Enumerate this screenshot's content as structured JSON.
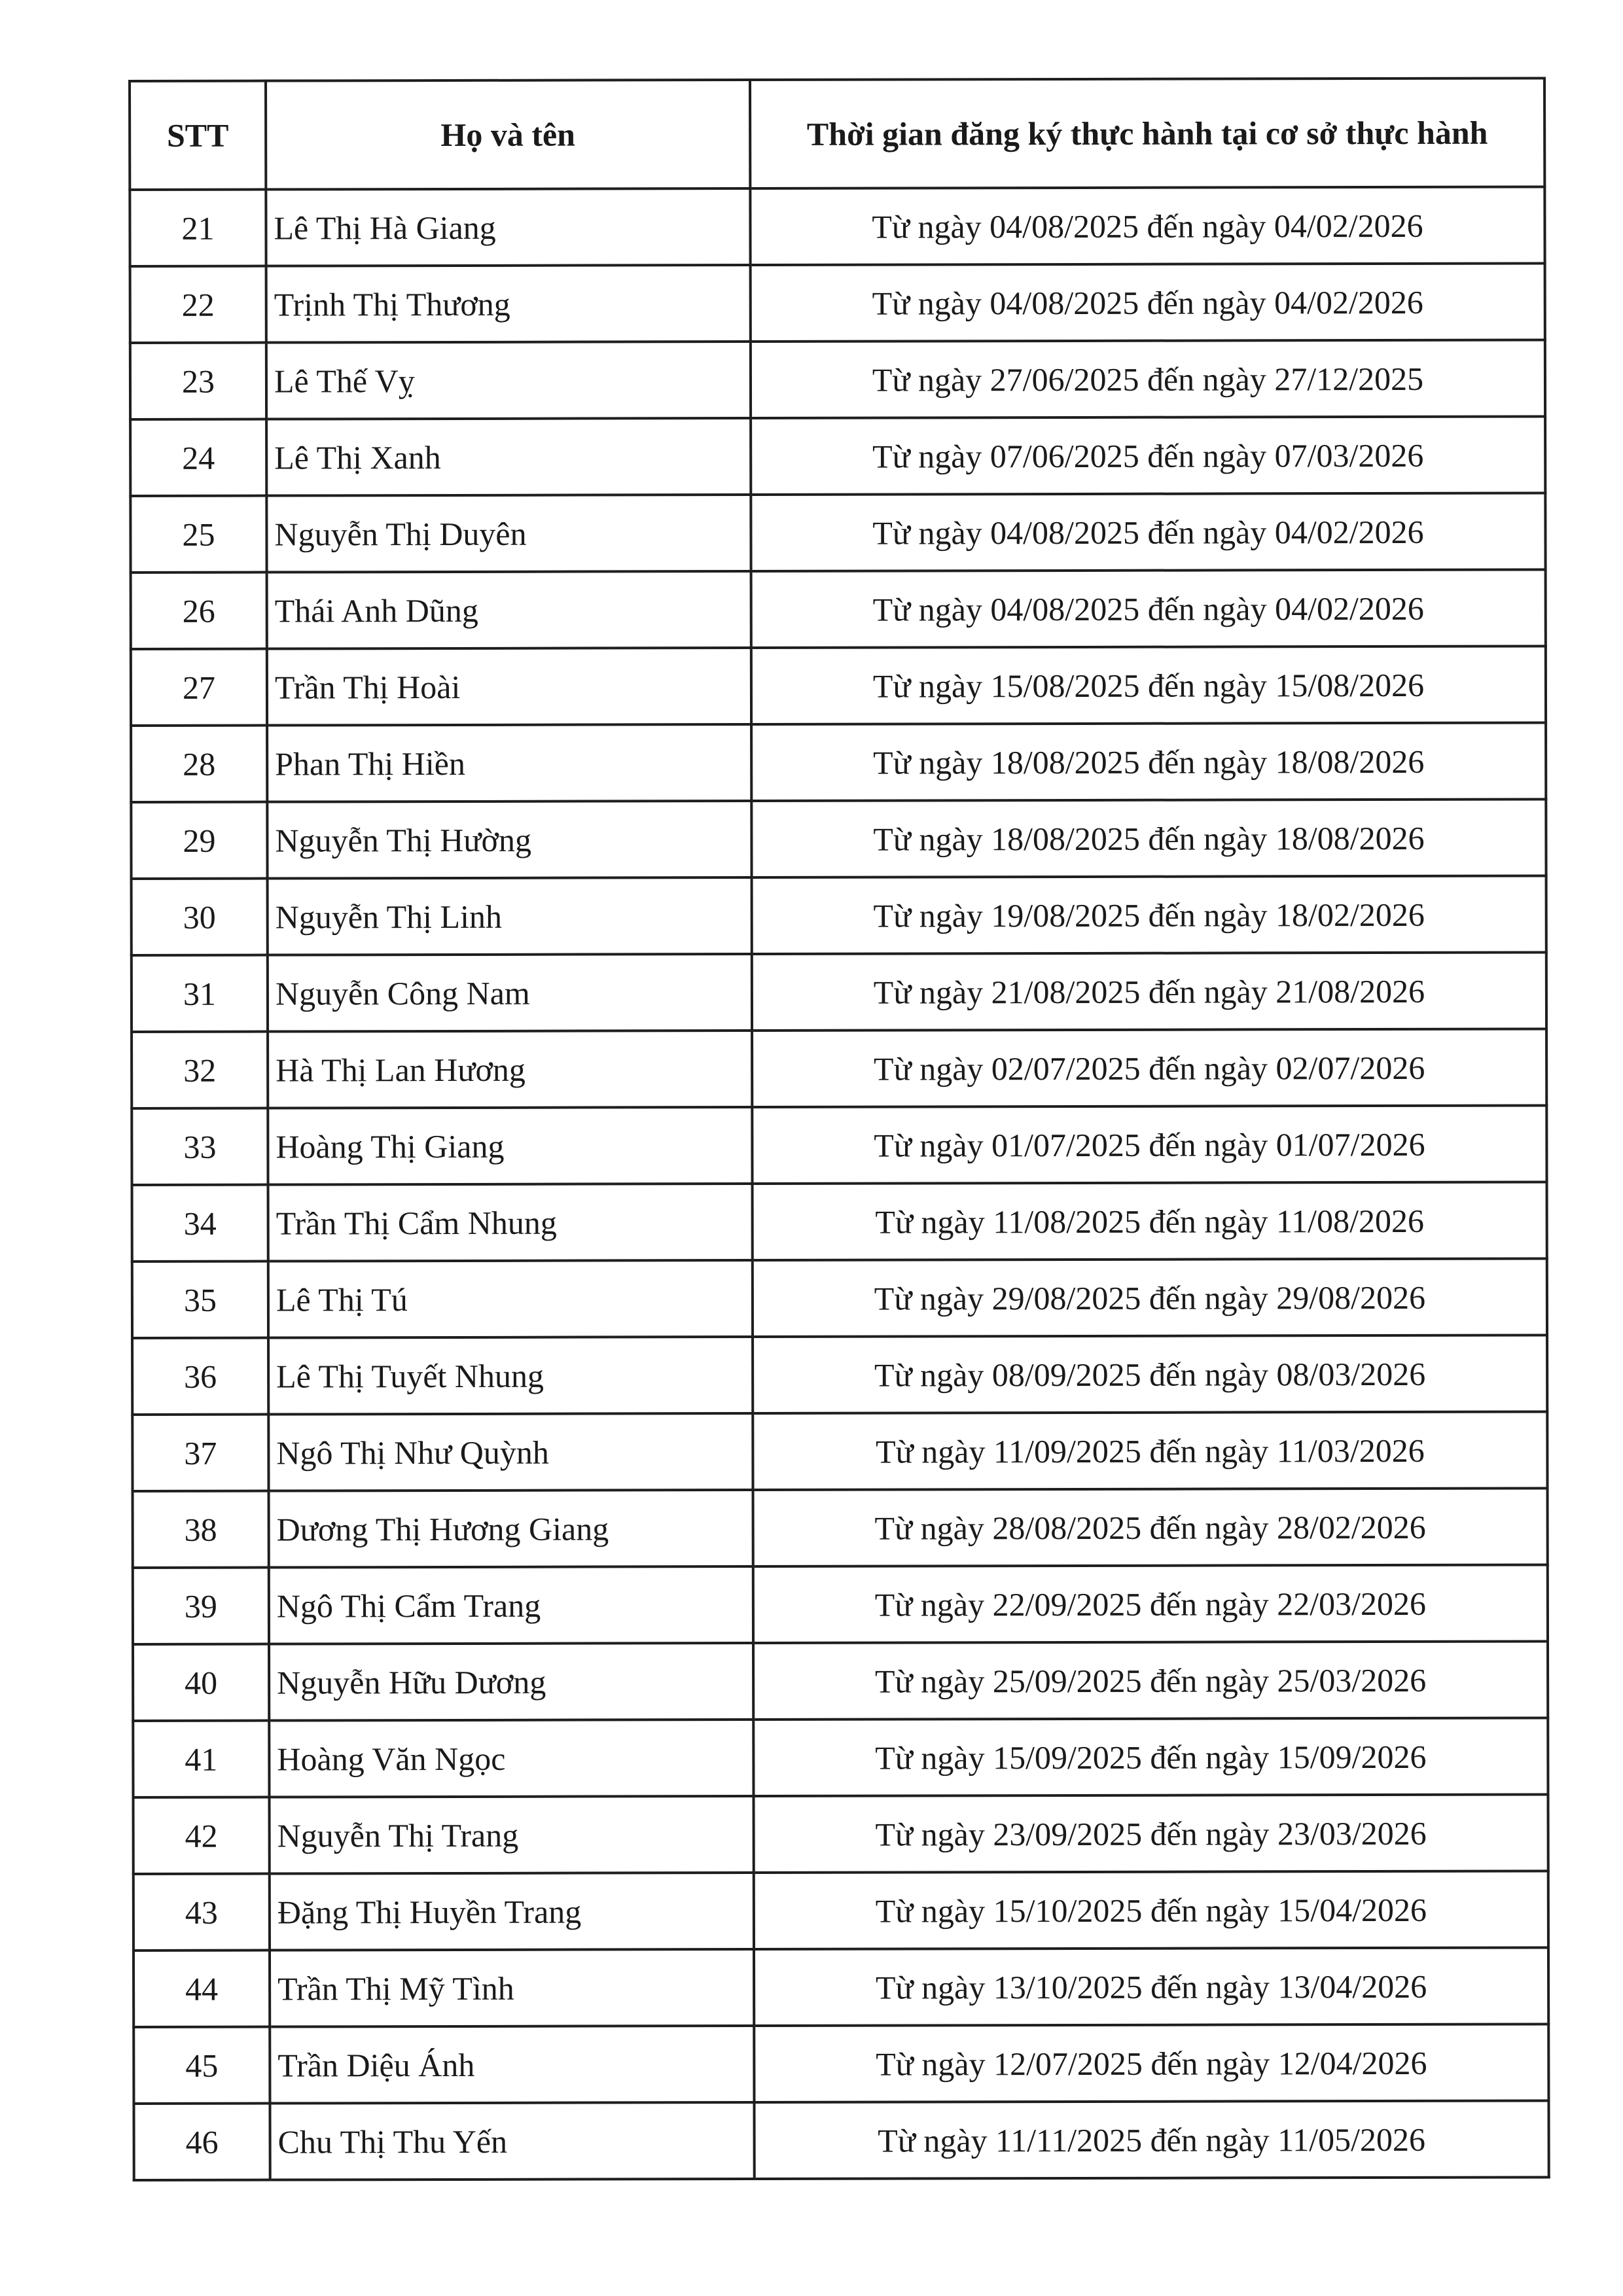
{
  "table": {
    "headers": {
      "stt": "STT",
      "name": "Họ và tên",
      "period": "Thời gian đăng ký thực hành tại cơ sở thực hành"
    },
    "rows": [
      {
        "stt": "21",
        "name": "Lê Thị Hà Giang",
        "period": "Từ ngày 04/08/2025 đến ngày 04/02/2026"
      },
      {
        "stt": "22",
        "name": "Trịnh Thị Thương",
        "period": "Từ ngày 04/08/2025 đến ngày 04/02/2026"
      },
      {
        "stt": "23",
        "name": "Lê Thế Vỵ",
        "period": "Từ ngày 27/06/2025 đến ngày 27/12/2025"
      },
      {
        "stt": "24",
        "name": "Lê Thị Xanh",
        "period": "Từ ngày 07/06/2025 đến ngày 07/03/2026"
      },
      {
        "stt": "25",
        "name": "Nguyễn Thị Duyên",
        "period": "Từ ngày 04/08/2025 đến ngày 04/02/2026"
      },
      {
        "stt": "26",
        "name": "Thái Anh Dũng",
        "period": "Từ ngày 04/08/2025 đến ngày 04/02/2026"
      },
      {
        "stt": "27",
        "name": "Trần Thị Hoài",
        "period": "Từ ngày 15/08/2025 đến ngày 15/08/2026"
      },
      {
        "stt": "28",
        "name": "Phan Thị Hiền",
        "period": "Từ ngày 18/08/2025 đến ngày 18/08/2026"
      },
      {
        "stt": "29",
        "name": "Nguyễn Thị Hường",
        "period": "Từ ngày 18/08/2025 đến ngày 18/08/2026"
      },
      {
        "stt": "30",
        "name": "Nguyễn Thị Linh",
        "period": "Từ ngày 19/08/2025 đến ngày 18/02/2026"
      },
      {
        "stt": "31",
        "name": "Nguyễn Công Nam",
        "period": "Từ ngày 21/08/2025 đến ngày 21/08/2026"
      },
      {
        "stt": "32",
        "name": "Hà Thị Lan Hương",
        "period": "Từ ngày 02/07/2025 đến ngày  02/07/2026"
      },
      {
        "stt": "33",
        "name": "Hoàng Thị Giang",
        "period": "Từ ngày 01/07/2025 đến ngày  01/07/2026"
      },
      {
        "stt": "34",
        "name": "Trần Thị Cẩm Nhung",
        "period": "Từ ngày 11/08/2025 đến ngày  11/08/2026"
      },
      {
        "stt": "35",
        "name": "Lê Thị Tú",
        "period": "Từ ngày 29/08/2025 đến ngày  29/08/2026"
      },
      {
        "stt": "36",
        "name": "Lê Thị Tuyết Nhung",
        "period": "Từ ngày 08/09/2025 đến ngày  08/03/2026"
      },
      {
        "stt": "37",
        "name": "Ngô Thị Như Quỳnh",
        "period": "Từ ngày 11/09/2025 đến ngày  11/03/2026"
      },
      {
        "stt": "38",
        "name": "Dương Thị Hương Giang",
        "period": "Từ ngày 28/08/2025 đến ngày  28/02/2026"
      },
      {
        "stt": "39",
        "name": "Ngô Thị Cẩm Trang",
        "period": "Từ ngày 22/09/2025 đến ngày  22/03/2026"
      },
      {
        "stt": "40",
        "name": "Nguyễn Hữu Dương",
        "period": "Từ ngày 25/09/2025 đến ngày 25/03/2026"
      },
      {
        "stt": "41",
        "name": "Hoàng Văn Ngọc",
        "period": "Từ ngày 15/09/2025 đến ngày 15/09/2026"
      },
      {
        "stt": "42",
        "name": "Nguyễn Thị Trang",
        "period": "Từ ngày 23/09/2025 đến ngày 23/03/2026"
      },
      {
        "stt": "43",
        "name": "Đặng Thị Huyền Trang",
        "period": "Từ ngày 15/10/2025 đến ngày 15/04/2026"
      },
      {
        "stt": "44",
        "name": "Trần Thị Mỹ Tình",
        "period": "Từ ngày 13/10/2025 đến ngày 13/04/2026"
      },
      {
        "stt": "45",
        "name": "Trần Diệu Ánh",
        "period": "Từ ngày 12/07/2025 đến ngày 12/04/2026"
      },
      {
        "stt": "46",
        "name": "Chu Thị Thu Yến",
        "period": "Từ ngày 11/11/2025 đến ngày 11/05/2026"
      }
    ]
  }
}
